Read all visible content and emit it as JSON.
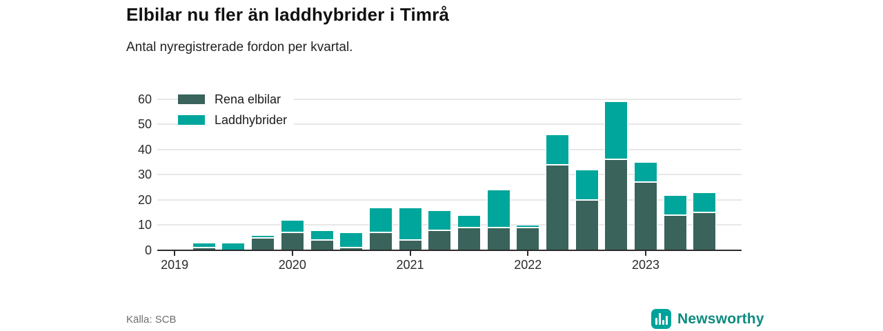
{
  "header": {
    "title": "Elbilar nu fler än laddhybrider i Timrå",
    "subtitle": "Antal nyregistrerade fordon per kvartal."
  },
  "legend": {
    "items": [
      {
        "label": "Rena elbilar",
        "color": "#3A635B"
      },
      {
        "label": "Laddhybrider",
        "color": "#00A69B"
      }
    ]
  },
  "footer": {
    "source": "Källa: SCB",
    "brand": "Newsworthy"
  },
  "colors": {
    "elbilar": "#3A635B",
    "laddhybrider": "#00A69B",
    "axis": "#2B2B2B",
    "grid": "#E7E7E7",
    "brand_icon": "#00A39A",
    "brand_text": "#0D8A80"
  },
  "chart_data": {
    "type": "bar",
    "stacked": true,
    "title": "Elbilar nu fler än laddhybrider i Timrå",
    "subtitle": "Antal nyregistrerade fordon per kvartal.",
    "x": [
      "2019 Q1",
      "2019 Q2",
      "2019 Q3",
      "2019 Q4",
      "2020 Q1",
      "2020 Q2",
      "2020 Q3",
      "2020 Q4",
      "2021 Q1",
      "2021 Q2",
      "2021 Q3",
      "2021 Q4",
      "2022 Q1",
      "2022 Q2",
      "2022 Q3",
      "2022 Q4",
      "2023 Q1",
      "2023 Q2",
      "2023 Q3"
    ],
    "series": [
      {
        "name": "Rena elbilar",
        "color": "#3A635B",
        "values": [
          0,
          1,
          0,
          5,
          7,
          4,
          1,
          7,
          4,
          8,
          9,
          9,
          9,
          34,
          20,
          36,
          27,
          14,
          15
        ]
      },
      {
        "name": "Laddhybrider",
        "color": "#00A69B",
        "values": [
          0,
          2,
          3,
          1,
          5,
          4,
          6,
          10,
          13,
          8,
          5,
          15,
          1,
          12,
          12,
          23,
          8,
          8,
          8
        ]
      }
    ],
    "totals": [
      0,
      3,
      3,
      6,
      12,
      8,
      7,
      17,
      17,
      16,
      14,
      24,
      10,
      46,
      32,
      59,
      35,
      22,
      23
    ],
    "ylim": [
      0,
      60
    ],
    "yticks": [
      0,
      10,
      20,
      30,
      40,
      50,
      60
    ],
    "xticks": [
      "2019",
      "2020",
      "2021",
      "2022",
      "2023"
    ],
    "grid": true,
    "legend_position": "top-left",
    "source": "Källa: SCB"
  }
}
